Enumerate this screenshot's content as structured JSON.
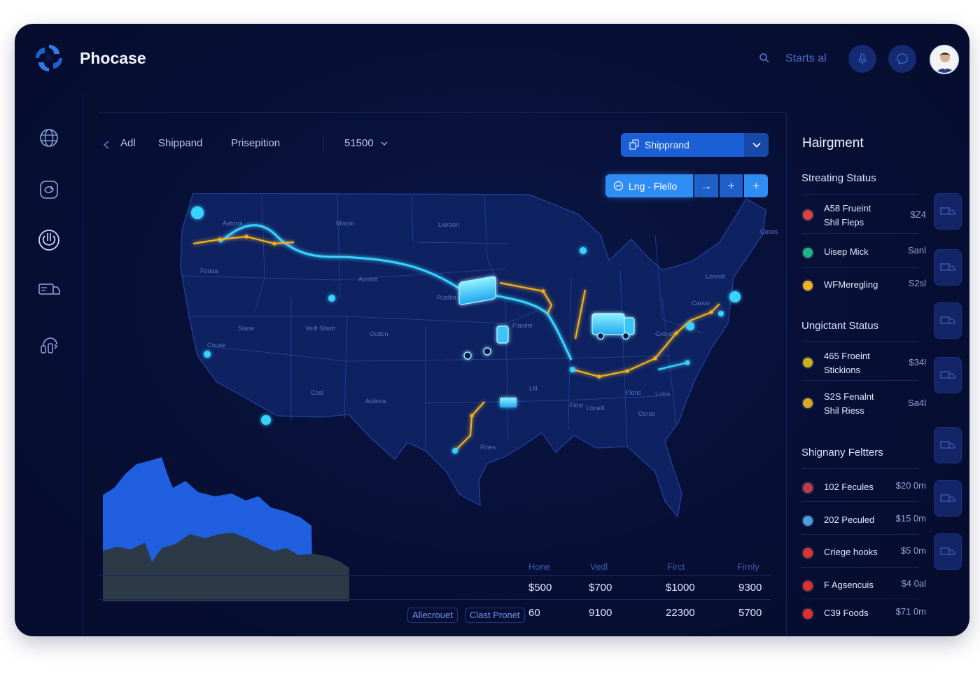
{
  "app": {
    "title": "Phocase"
  },
  "header": {
    "search_text": "Starts al",
    "search_icon": "search-icon",
    "mic_icon": "microphone-icon",
    "chat_icon": "chat-icon",
    "avatar": "user-avatar"
  },
  "sidebar": {
    "items": [
      {
        "icon": "globe-icon"
      },
      {
        "icon": "refresh-icon"
      },
      {
        "icon": "power-icon"
      },
      {
        "icon": "truck-icon"
      },
      {
        "icon": "support-icon"
      }
    ]
  },
  "filters": {
    "back_icon": "chevron-left-icon",
    "all": "Adl",
    "shipment": "Shippand",
    "prescription": "Prisepition",
    "amount": "51500"
  },
  "shipment_select": {
    "label": "Shipprand"
  },
  "route_bar": {
    "label": "Lng - Flello",
    "arrow": "→",
    "plus1": "+",
    "plus2": "+"
  },
  "map": {
    "state_labels": [
      "Aatorol",
      "Miston",
      "Lieroon",
      "Fouoa",
      "Aoroot",
      "Rusltin",
      "Siane",
      "Vedl Sitedr",
      "Octton",
      "Fialolte",
      "Couse",
      "Cosl",
      "Aubora",
      "Lfil",
      "Floes",
      "Fiosl",
      "Lbcelll",
      "Flonc",
      "Ocrus",
      "Gronol",
      "Lonrolt",
      "Canvo",
      "Lolos",
      "Cosos"
    ],
    "route_colors": {
      "primary": "#39d3ff",
      "secondary": "#f2b31e"
    }
  },
  "stats": {
    "headers": [
      "Hone",
      "Vedl",
      "Firct",
      "Firnly"
    ],
    "rows": [
      [
        "$500",
        "$700",
        "$1000",
        "9300"
      ],
      [
        "60",
        "9100",
        "22300",
        "5700"
      ]
    ],
    "chips": [
      "Allecrouet",
      "Clast Pronet"
    ]
  },
  "right_panel": {
    "title": "Hairgment",
    "sections": [
      {
        "title": "Streating Status",
        "items": [
          {
            "name": "A58 Frueint",
            "sub": "Shil Fleps",
            "value": "$Z4",
            "color": "#e0413a"
          },
          {
            "name": "Uisep Mick",
            "sub": "",
            "value": "Sanl",
            "color": "#20b585"
          },
          {
            "name": "WFMeregling",
            "sub": "",
            "value": "S2sl",
            "color": "#f2b31e"
          }
        ]
      },
      {
        "title": "Ungictant Status",
        "items": [
          {
            "name": "465 Froeint",
            "sub": "Stickions",
            "value": "$34l",
            "color": "#c7b21c"
          },
          {
            "name": "S2S Fenalnt",
            "sub": "Shil Riess",
            "value": "Sa4l",
            "color": "#d7a728"
          }
        ]
      },
      {
        "title": "Shignany Feltters",
        "items": [
          {
            "name": "102 Fecules",
            "sub": "",
            "value": "$20 0m",
            "color": "#c23a4a"
          },
          {
            "name": "202 Peculed",
            "sub": "",
            "value": "$15 0m",
            "color": "#4a9fe0"
          },
          {
            "name": "Criege hooks",
            "sub": "",
            "value": "$5 0m",
            "color": "#e0312f"
          },
          {
            "name": "F Agsencuis",
            "sub": "",
            "value": "$4 0al",
            "color": "#e0312f"
          },
          {
            "name": "C39 Foods",
            "sub": "",
            "value": "$71 0m",
            "color": "#e0312f"
          }
        ]
      }
    ]
  }
}
